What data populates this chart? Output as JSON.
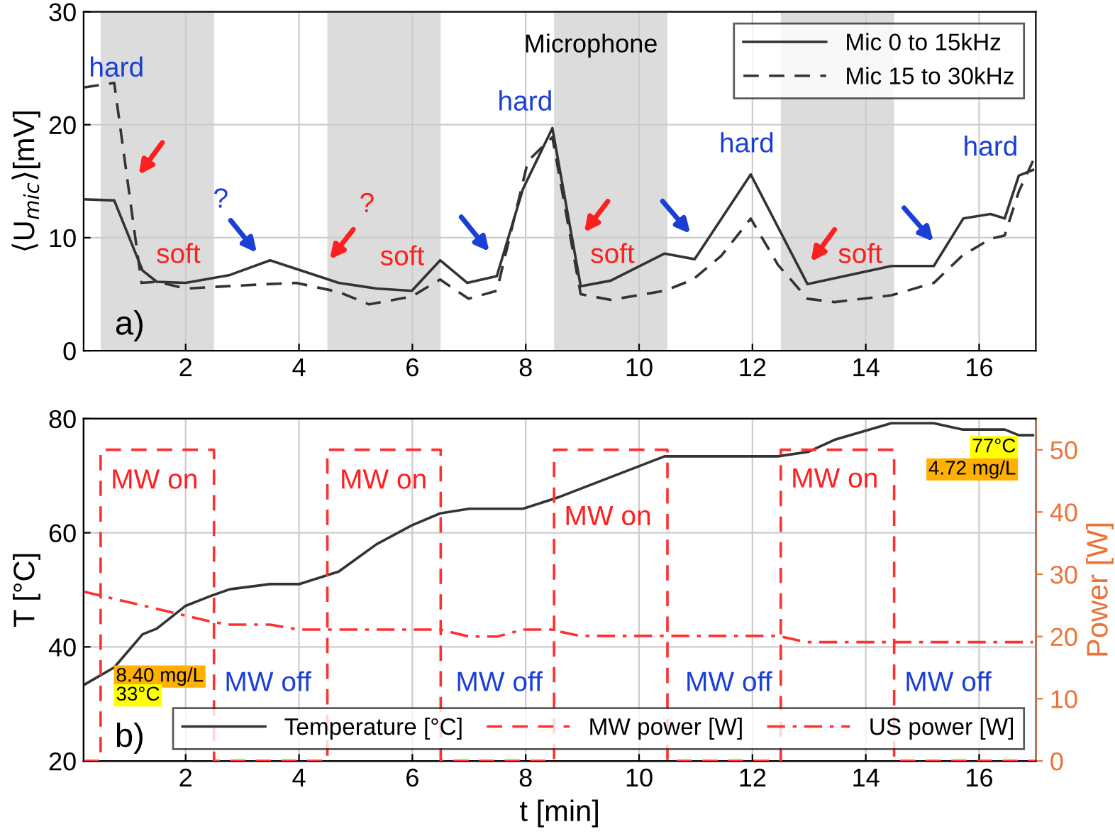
{
  "chart_data": [
    {
      "type": "line",
      "ylabel": "⟨U$_{mic}$⟩[mV]",
      "xlim": [
        0.2,
        17
      ],
      "ylim": [
        0,
        30
      ],
      "xticks": [
        2,
        4,
        6,
        8,
        10,
        12,
        14,
        16
      ],
      "yticks": [
        0,
        10,
        20,
        30
      ],
      "grid": true,
      "legend": "top right",
      "series": [
        {
          "name": "Mic 0 to 15kHz",
          "color": "#333333",
          "line_style": "solid",
          "x": [
            0.2,
            0.74,
            1.24,
            1.49,
            2.0,
            2.78,
            3.49,
            4.7,
            5.37,
            5.99,
            6.49,
            6.97,
            7.49,
            7.95,
            8.47,
            8.97,
            9.5,
            10.45,
            10.98,
            11.97,
            12.97,
            14.45,
            15.2,
            15.72,
            16.2,
            16.45,
            16.7,
            16.95
          ],
          "values": [
            13.4,
            13.3,
            7.1,
            6.1,
            6.0,
            6.7,
            8.0,
            6.0,
            5.5,
            5.3,
            8.0,
            6.0,
            6.6,
            14.3,
            19.7,
            5.7,
            6.2,
            8.6,
            8.1,
            15.6,
            5.9,
            7.5,
            7.5,
            11.7,
            12.1,
            11.7,
            15.5,
            16.0
          ]
        },
        {
          "name": "Mic 15 to 30kHz",
          "color": "#333333",
          "line_style": "dashed",
          "x": [
            0.2,
            0.74,
            1.22,
            1.49,
            2.0,
            2.7,
            3.49,
            3.95,
            4.7,
            5.24,
            5.99,
            6.49,
            6.99,
            7.49,
            8.04,
            8.47,
            8.97,
            9.5,
            10.45,
            10.95,
            11.45,
            11.97,
            12.45,
            12.97,
            13.45,
            14.45,
            15.2,
            15.7,
            16.2,
            16.45,
            16.7,
            16.95
          ],
          "values": [
            23.3,
            23.7,
            6.0,
            6.1,
            5.5,
            5.7,
            5.9,
            6.0,
            5.2,
            4.1,
            4.8,
            6.3,
            4.6,
            5.3,
            16.8,
            18.9,
            5.0,
            4.5,
            5.3,
            6.3,
            8.4,
            11.7,
            7.6,
            4.6,
            4.3,
            4.9,
            6.0,
            8.4,
            9.9,
            10.2,
            14.1,
            16.8
          ]
        }
      ],
      "bands": [
        {
          "axis": "x",
          "from": 0.5,
          "to": 2.5,
          "color": "#dcdcdc"
        },
        {
          "axis": "x",
          "from": 4.5,
          "to": 6.5,
          "color": "#dcdcdc"
        },
        {
          "axis": "x",
          "from": 8.5,
          "to": 10.5,
          "color": "#dcdcdc"
        },
        {
          "axis": "x",
          "from": 12.5,
          "to": 14.5,
          "color": "#dcdcdc"
        }
      ],
      "annotations": [
        "Microphone",
        "a)",
        "hard",
        "soft",
        "?",
        "?",
        "soft",
        "hard",
        "soft",
        "hard",
        "soft",
        "hard"
      ]
    },
    {
      "type": "line",
      "xlabel": "t [min]",
      "ylabel": "T [°C]",
      "y2label": "Power [W]",
      "xlim": [
        0.2,
        17
      ],
      "ylim": [
        20,
        80
      ],
      "y2lim": [
        0,
        55
      ],
      "xticks": [
        2,
        4,
        6,
        8,
        10,
        12,
        14,
        16
      ],
      "yticks": [
        20,
        40,
        60,
        80
      ],
      "y2ticks": [
        0,
        10,
        20,
        30,
        40,
        50
      ],
      "grid": true,
      "legend": "bottom right",
      "series": [
        {
          "name": "Temperature [°C]",
          "color": "#333333",
          "line_style": "solid",
          "x": [
            0.2,
            0.74,
            1.24,
            1.49,
            2.0,
            2.49,
            2.78,
            3.49,
            4.0,
            4.7,
            5.37,
            5.99,
            6.49,
            7.0,
            7.95,
            8.6,
            10.45,
            12.45,
            12.99,
            13.45,
            14.45,
            15.2,
            15.7,
            16.45,
            16.7,
            16.95
          ],
          "values": [
            33.3,
            36.4,
            42.2,
            43.2,
            47.2,
            49.1,
            50.1,
            51,
            51,
            53.2,
            58.0,
            61.3,
            63.4,
            64.2,
            64.2,
            66.3,
            73.4,
            73.4,
            74.2,
            76.3,
            79.2,
            79.2,
            78.1,
            78.1,
            77.1,
            77.1
          ]
        },
        {
          "name": "MW power [W]",
          "color": "#ff3030",
          "line_style": "dashed",
          "axis": "y2",
          "x": [
            0.2,
            0.5,
            0.5,
            2.5,
            2.5,
            4.5,
            4.5,
            6.5,
            6.5,
            8.5,
            8.5,
            10.5,
            10.5,
            12.5,
            12.5,
            14.5,
            14.5,
            17
          ],
          "values": [
            0,
            0,
            50,
            50,
            0,
            0,
            50,
            50,
            0,
            0,
            50,
            50,
            0,
            0,
            50,
            50,
            0,
            0
          ]
        },
        {
          "name": "US power [W]",
          "color": "#ff3030",
          "line_style": "dashdot",
          "axis": "y2",
          "x": [
            0.2,
            2.49,
            2.78,
            3.49,
            4.0,
            6.49,
            7.0,
            7.5,
            7.95,
            8.45,
            8.95,
            12.45,
            12.95,
            16.95
          ],
          "values": [
            27.2,
            22.3,
            21.9,
            21.9,
            21.1,
            21.1,
            20.0,
            20.0,
            21.1,
            21.1,
            20.1,
            20.1,
            19.1,
            19.1
          ]
        }
      ],
      "annotations": [
        "b)",
        "MW on",
        "MW on",
        "MW on",
        "MW on",
        "MW off",
        "MW off",
        "MW off",
        "MW off",
        "8.40 mg/L",
        "33°C",
        "77°C",
        "4.72 mg/L"
      ]
    }
  ]
}
